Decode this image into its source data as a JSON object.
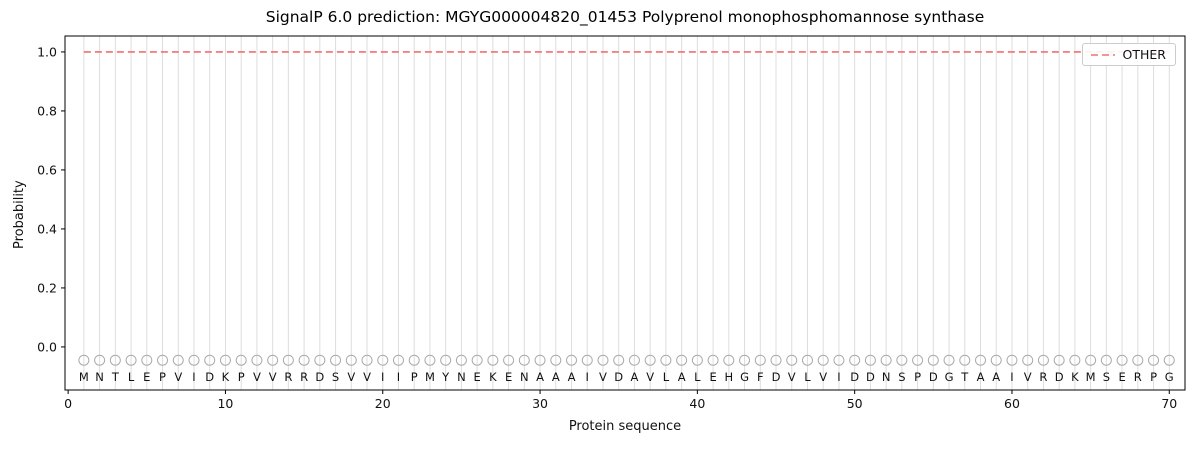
{
  "chart_data": {
    "type": "line",
    "title": "SignalP 6.0 prediction: MGYG000004820_01453 Polyprenol monophosphomannose synthase",
    "xlabel": "Protein sequence",
    "ylabel": "Probability",
    "xlim": [
      -0.2,
      71
    ],
    "ylim": [
      -0.146,
      1.054
    ],
    "xticks": [
      0,
      10,
      20,
      30,
      40,
      50,
      60,
      70
    ],
    "yticks": [
      0.0,
      0.2,
      0.4,
      0.6,
      0.8,
      1.0
    ],
    "ytick_labels": [
      "0.0",
      "0.2",
      "0.4",
      "0.6",
      "0.8",
      "1.0"
    ],
    "grid": "vertical line at every residue position",
    "legend_position": "upper right",
    "sequence": [
      "M",
      "N",
      "T",
      "L",
      "E",
      "P",
      "V",
      "I",
      "D",
      "K",
      "P",
      "V",
      "V",
      "R",
      "R",
      "D",
      "S",
      "V",
      "V",
      "I",
      "I",
      "P",
      "M",
      "Y",
      "N",
      "E",
      "K",
      "E",
      "N",
      "A",
      "A",
      "A",
      "I",
      "V",
      "D",
      "A",
      "V",
      "L",
      "A",
      "L",
      "E",
      "H",
      "G",
      "F",
      "D",
      "V",
      "L",
      "V",
      "I",
      "D",
      "D",
      "N",
      "S",
      "P",
      "D",
      "G",
      "T",
      "A",
      "A",
      "I",
      "V",
      "R",
      "D",
      "K",
      "M",
      "S",
      "E",
      "R",
      "P",
      "G"
    ],
    "series": [
      {
        "name": "OTHER",
        "style": "dashed",
        "color": "#f07070",
        "x_range": [
          1,
          70
        ],
        "constant_value": 1.0
      }
    ],
    "markers": {
      "shape": "circle",
      "y": -0.045,
      "per_residue": true
    },
    "colors": {
      "grid": "#dddddd",
      "frame": "#000000",
      "marker": "#aaaaaa",
      "tick_text": "#111111",
      "letter_text": "#111111",
      "legend_border": "#cccccc"
    }
  }
}
